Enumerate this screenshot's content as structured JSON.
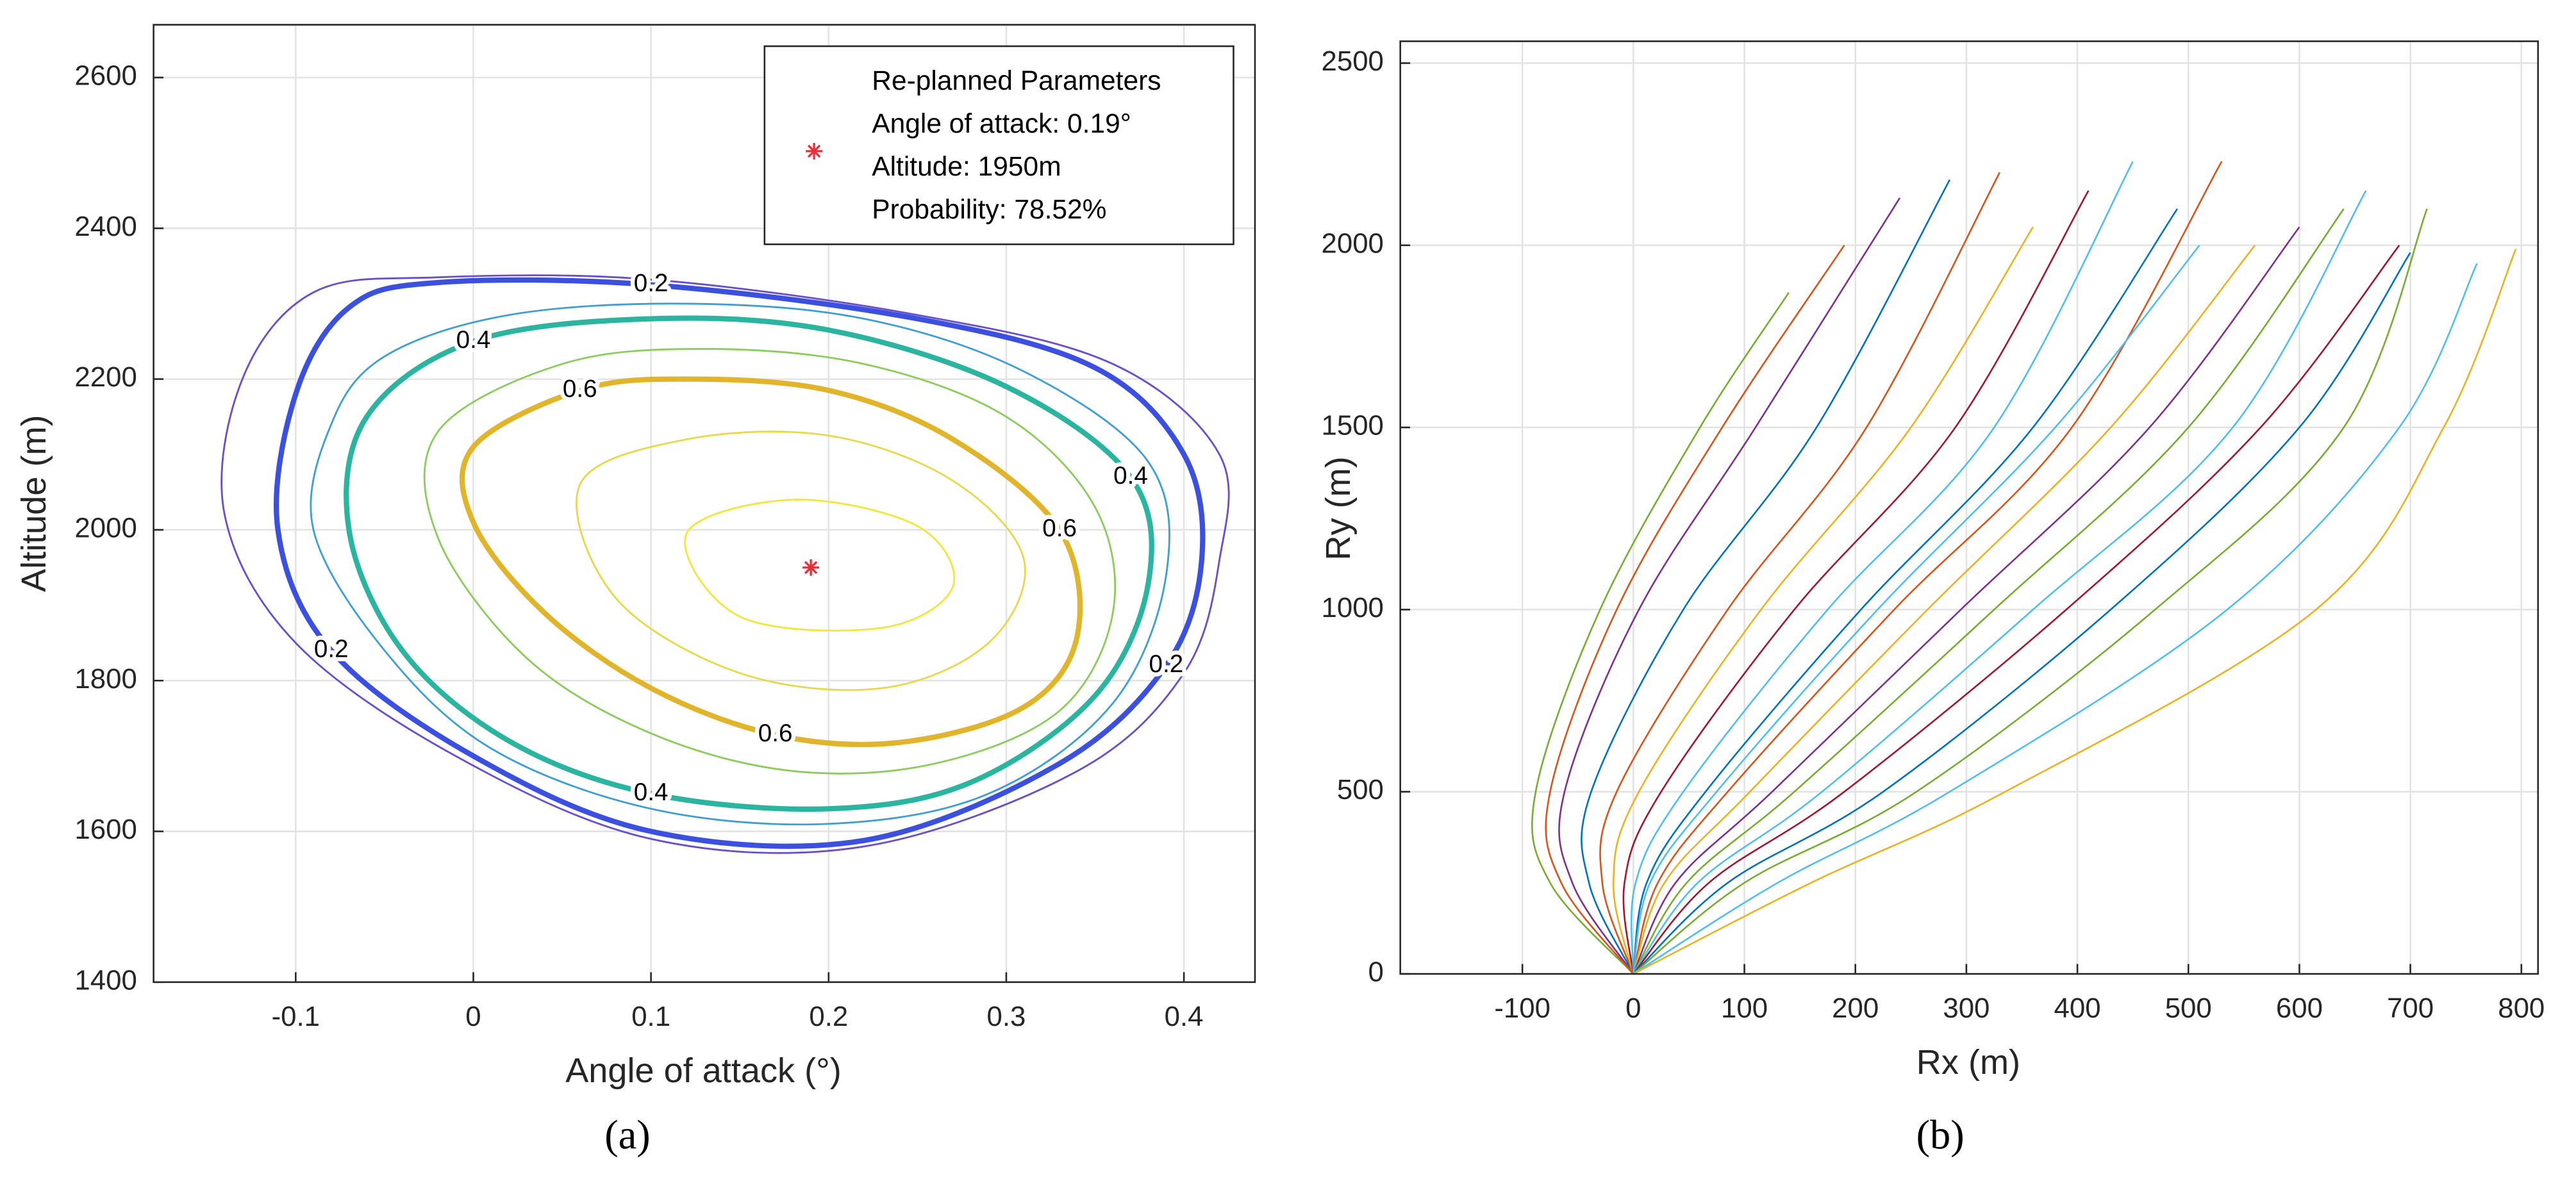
{
  "chart_data": [
    {
      "type": "contour",
      "caption": "(a)",
      "xlabel": "Angle of attack (°)",
      "ylabel": "Altitude (m)",
      "xlim": [
        -0.18,
        0.44
      ],
      "ylim": [
        1400,
        2670
      ],
      "xticks": [
        -0.1,
        0,
        0.1,
        0.2,
        0.3,
        0.4
      ],
      "yticks": [
        1400,
        1600,
        1800,
        2000,
        2200,
        2400,
        2600
      ],
      "grid": true,
      "contours": [
        {
          "level": 0.1,
          "color": "#6a4fc9",
          "x": [
            -0.02,
            0.1,
            0.25,
            0.36,
            0.42,
            0.42,
            0.4,
            0.34,
            0.22,
            0.1,
            -0.01,
            -0.1,
            -0.14,
            -0.13,
            -0.09
          ],
          "y": [
            2335,
            2332,
            2285,
            2220,
            2100,
            1960,
            1810,
            1680,
            1580,
            1590,
            1700,
            1850,
            2020,
            2200,
            2315
          ]
        },
        {
          "level": 0.2,
          "color": "#3c50e0",
          "label": "0.2",
          "x": [
            -0.02,
            0.1,
            0.25,
            0.35,
            0.4,
            0.41,
            0.39,
            0.33,
            0.22,
            0.1,
            0.0,
            -0.08,
            -0.11,
            -0.1,
            -0.07
          ],
          "y": [
            2328,
            2325,
            2280,
            2215,
            2100,
            1960,
            1820,
            1690,
            1588,
            1600,
            1700,
            1840,
            2000,
            2180,
            2295
          ]
        },
        {
          "level": 0.3,
          "color": "#3f9fd0",
          "x": [
            -0.05,
            0.02,
            0.12,
            0.22,
            0.31,
            0.38,
            0.39,
            0.36,
            0.29,
            0.2,
            0.1,
            0.01,
            -0.05,
            -0.09,
            -0.08
          ],
          "y": [
            2230,
            2285,
            2300,
            2280,
            2210,
            2090,
            1940,
            1770,
            1650,
            1610,
            1630,
            1710,
            1840,
            2000,
            2140
          ]
        },
        {
          "level": 0.4,
          "color": "#2bb5a0",
          "label": "0.4",
          "x": [
            -0.06,
            0.0,
            0.1,
            0.2,
            0.3,
            0.37,
            0.38,
            0.35,
            0.28,
            0.2,
            0.1,
            0.02,
            -0.04,
            -0.07
          ],
          "y": [
            2150,
            2250,
            2280,
            2265,
            2190,
            2070,
            1930,
            1780,
            1665,
            1630,
            1650,
            1720,
            1840,
            2000
          ]
        },
        {
          "level": 0.5,
          "color": "#8ccc5c",
          "x": [
            -0.02,
            0.05,
            0.13,
            0.22,
            0.3,
            0.35,
            0.36,
            0.33,
            0.26,
            0.18,
            0.1,
            0.03,
            -0.02
          ],
          "y": [
            2130,
            2220,
            2240,
            2220,
            2150,
            2030,
            1890,
            1760,
            1690,
            1680,
            1730,
            1830,
            1990
          ]
        },
        {
          "level": 0.6,
          "color": "#e0b52b",
          "label": "0.6",
          "x": [
            0.0,
            0.06,
            0.12,
            0.2,
            0.27,
            0.33,
            0.34,
            0.31,
            0.24,
            0.17,
            0.1,
            0.04,
            0.0
          ],
          "y": [
            2110,
            2185,
            2200,
            2185,
            2120,
            2000,
            1860,
            1765,
            1718,
            1728,
            1790,
            1890,
            2010
          ]
        },
        {
          "level": 0.7,
          "color": "#e8d84a",
          "x": [
            0.06,
            0.12,
            0.2,
            0.27,
            0.31,
            0.29,
            0.23,
            0.15,
            0.08
          ],
          "y": [
            2060,
            2120,
            2125,
            2065,
            1960,
            1850,
            1790,
            1810,
            1910
          ]
        },
        {
          "level": 0.75,
          "color": "#f2e63c",
          "x": [
            0.12,
            0.18,
            0.25,
            0.27,
            0.23,
            0.15
          ],
          "y": [
            1995,
            2040,
            2005,
            1925,
            1870,
            1885
          ]
        }
      ],
      "point": {
        "x": 0.19,
        "y": 1950,
        "color": "#e8303a"
      },
      "legend": {
        "corner": "upper right",
        "lines": [
          "Re-planned Parameters",
          "Angle of attack: 0.19°",
          "Altitude: 1950m",
          "Probability: 78.52%"
        ]
      }
    },
    {
      "type": "line",
      "caption": "(b)",
      "xlabel": "Rx (m)",
      "ylabel": "Ry (m)",
      "xlim": [
        -210,
        815
      ],
      "ylim": [
        0,
        2560
      ],
      "xticks": [
        -100,
        0,
        100,
        200,
        300,
        400,
        500,
        600,
        700,
        800
      ],
      "yticks": [
        0,
        500,
        1000,
        1500,
        2000,
        2500
      ],
      "grid": true,
      "series": [
        {
          "color": "#77AC30",
          "x": [
            0,
            -75,
            -88,
            -30,
            60,
            140
          ],
          "y": [
            0,
            250,
            500,
            1000,
            1500,
            1870
          ]
        },
        {
          "color": "#7E2F8E",
          "x": [
            0,
            -55,
            -62,
            5,
            110,
            240
          ],
          "y": [
            0,
            250,
            500,
            1000,
            1500,
            2130
          ]
        },
        {
          "color": "#0072BD",
          "x": [
            0,
            -40,
            -38,
            45,
            165,
            285
          ],
          "y": [
            0,
            250,
            500,
            1000,
            1500,
            2180
          ]
        },
        {
          "color": "#D95319",
          "x": [
            0,
            -28,
            -15,
            85,
            210,
            330
          ],
          "y": [
            0,
            250,
            500,
            1000,
            1500,
            2200
          ]
        },
        {
          "color": "#EDB120",
          "x": [
            0,
            -18,
            5,
            115,
            250,
            360
          ],
          "y": [
            0,
            250,
            500,
            1000,
            1500,
            2050
          ]
        },
        {
          "color": "#A2142F",
          "x": [
            0,
            -8,
            25,
            145,
            290,
            410
          ],
          "y": [
            0,
            250,
            500,
            1000,
            1500,
            2150
          ]
        },
        {
          "color": "#4DBEEE",
          "x": [
            0,
            2,
            45,
            175,
            325,
            450
          ],
          "y": [
            0,
            250,
            500,
            1000,
            1500,
            2230
          ]
        },
        {
          "color": "#0072BD",
          "x": [
            0,
            12,
            65,
            205,
            360,
            490
          ],
          "y": [
            0,
            250,
            500,
            1000,
            1500,
            2100
          ]
        },
        {
          "color": "#D95319",
          "x": [
            0,
            22,
            85,
            235,
            395,
            530
          ],
          "y": [
            0,
            250,
            500,
            1000,
            1500,
            2230
          ]
        },
        {
          "color": "#EDB120",
          "x": [
            0,
            28,
            105,
            265,
            430,
            560
          ],
          "y": [
            0,
            250,
            500,
            1000,
            1500,
            2000
          ]
        },
        {
          "color": "#7E2F8E",
          "x": [
            0,
            38,
            125,
            295,
            465,
            600
          ],
          "y": [
            0,
            250,
            500,
            1000,
            1500,
            2050
          ]
        },
        {
          "color": "#77AC30",
          "x": [
            0,
            48,
            145,
            325,
            500,
            640
          ],
          "y": [
            0,
            250,
            500,
            1000,
            1500,
            2100
          ]
        },
        {
          "color": "#4DBEEE",
          "x": [
            0,
            58,
            170,
            360,
            540,
            660
          ],
          "y": [
            0,
            250,
            500,
            1000,
            1500,
            2150
          ]
        },
        {
          "color": "#A2142F",
          "x": [
            0,
            68,
            190,
            390,
            565,
            690
          ],
          "y": [
            0,
            250,
            500,
            1000,
            1500,
            2000
          ]
        },
        {
          "color": "#0072BD",
          "x": [
            0,
            85,
            225,
            430,
            600,
            700
          ],
          "y": [
            0,
            250,
            500,
            1000,
            1500,
            1980
          ]
        },
        {
          "color": "#77AC30",
          "x": [
            0,
            100,
            255,
            470,
            640,
            715
          ],
          "y": [
            0,
            250,
            500,
            1000,
            1500,
            2100
          ]
        },
        {
          "color": "#4DBEEE",
          "x": [
            0,
            130,
            285,
            535,
            690,
            760
          ],
          "y": [
            0,
            250,
            500,
            1000,
            1500,
            1950
          ]
        },
        {
          "color": "#EDB120",
          "x": [
            0,
            160,
            335,
            615,
            730,
            795
          ],
          "y": [
            0,
            250,
            500,
            1000,
            1500,
            1990
          ]
        },
        {
          "color": "#D95319",
          "x": [
            0,
            -65,
            -75,
            -15,
            80,
            190
          ],
          "y": [
            0,
            250,
            500,
            1000,
            1500,
            2000
          ]
        },
        {
          "color": "#4DBEEE",
          "x": [
            0,
            15,
            75,
            220,
            380,
            510
          ],
          "y": [
            0,
            250,
            500,
            1000,
            1500,
            2000
          ]
        }
      ]
    }
  ]
}
